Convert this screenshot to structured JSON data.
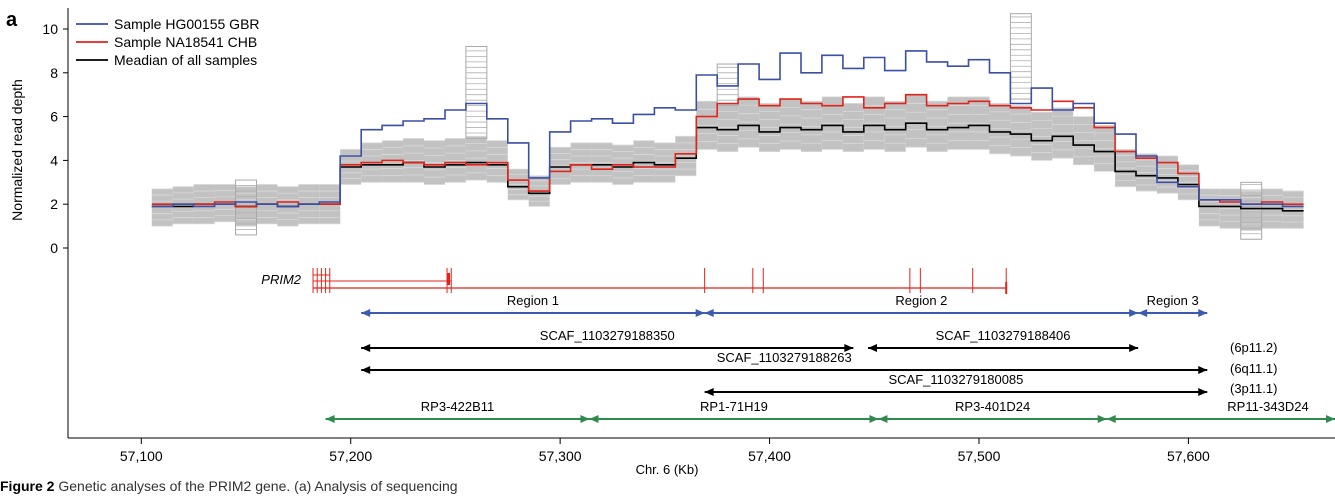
{
  "chart_data": {
    "type": "line",
    "panel_label": "a",
    "ylabel": "Normalized read depth",
    "xlabel": "Chr. 6 (Kb)",
    "xlim": [
      57065,
      57670
    ],
    "ylim": [
      -0.5,
      10.8
    ],
    "y_ticks": [
      0,
      2,
      4,
      6,
      8,
      10
    ],
    "x_ticks": [
      57100,
      57200,
      57300,
      57400,
      57500,
      57600
    ],
    "x_tick_labels": [
      "57,100",
      "57,200",
      "57,300",
      "57,400",
      "57,500",
      "57,600"
    ],
    "legend_placement": "top-left",
    "legend": [
      {
        "label": "Sample HG00155 GBR",
        "color": "#3a4fa6"
      },
      {
        "label": "Sample NA18541 CHB",
        "color": "#e2231a"
      },
      {
        "label": "Meadian of all samples",
        "color": "#000000"
      }
    ],
    "bin_edges": [
      57105,
      57115,
      57125,
      57135,
      57145,
      57155,
      57165,
      57175,
      57185,
      57195,
      57205,
      57215,
      57225,
      57235,
      57245,
      57255,
      57265,
      57275,
      57285,
      57295,
      57305,
      57315,
      57325,
      57335,
      57345,
      57355,
      57365,
      57375,
      57385,
      57395,
      57405,
      57415,
      57425,
      57435,
      57445,
      57455,
      57465,
      57475,
      57485,
      57495,
      57505,
      57515,
      57525,
      57535,
      57545,
      57555,
      57565,
      57575,
      57585,
      57595,
      57605,
      57615,
      57625,
      57635,
      57645,
      57655
    ],
    "series": [
      {
        "name": "Sample HG00155 GBR",
        "color": "#3a4fa6",
        "values": [
          1.9,
          2.0,
          1.9,
          2.0,
          2.1,
          2.0,
          1.9,
          2.0,
          2.1,
          4.2,
          5.4,
          5.6,
          5.8,
          5.9,
          6.3,
          6.6,
          5.9,
          4.8,
          3.2,
          5.3,
          5.8,
          5.9,
          5.7,
          6.1,
          6.4,
          6.3,
          7.9,
          7.4,
          8.4,
          7.7,
          8.9,
          8.0,
          8.8,
          8.2,
          8.7,
          8.1,
          9.0,
          8.5,
          8.3,
          8.6,
          8.0,
          6.6,
          7.3,
          6.3,
          6.6,
          5.7,
          5.2,
          4.2,
          3.0,
          2.8,
          2.2,
          2.2,
          2.0,
          2.0,
          1.9
        ]
      },
      {
        "name": "Sample NA18541 CHB",
        "color": "#e2231a",
        "values": [
          2.0,
          2.0,
          2.0,
          2.1,
          1.9,
          2.0,
          2.1,
          2.0,
          2.0,
          3.8,
          3.9,
          4.0,
          3.9,
          3.8,
          3.9,
          3.8,
          3.9,
          3.1,
          2.6,
          3.5,
          3.8,
          3.6,
          3.8,
          3.7,
          3.7,
          4.3,
          6.0,
          6.6,
          6.8,
          6.5,
          6.8,
          6.6,
          6.5,
          6.9,
          6.4,
          6.6,
          7.0,
          6.5,
          6.6,
          6.7,
          6.5,
          6.4,
          6.3,
          6.7,
          6.4,
          5.5,
          4.4,
          4.1,
          3.9,
          3.4,
          2.2,
          2.1,
          2.0,
          2.1,
          2.0
        ]
      },
      {
        "name": "Meadian of all samples",
        "color": "#000000",
        "values": [
          1.9,
          1.9,
          2.0,
          2.0,
          1.9,
          2.0,
          1.9,
          2.0,
          2.0,
          3.7,
          3.8,
          3.8,
          3.9,
          3.7,
          3.8,
          3.9,
          3.8,
          2.8,
          2.5,
          3.7,
          3.8,
          3.8,
          3.7,
          3.9,
          3.8,
          4.1,
          5.5,
          5.4,
          5.6,
          5.3,
          5.5,
          5.4,
          5.6,
          5.3,
          5.6,
          5.4,
          5.7,
          5.4,
          5.5,
          5.6,
          5.3,
          5.2,
          4.9,
          5.1,
          4.7,
          4.4,
          3.5,
          3.3,
          3.2,
          2.9,
          1.9,
          1.9,
          1.8,
          1.8,
          1.7
        ]
      }
    ],
    "background_band": {
      "color": "#c2c2c2",
      "low": [
        1.0,
        1.1,
        1.1,
        1.2,
        1.0,
        1.1,
        1.0,
        1.1,
        1.1,
        2.9,
        3.0,
        3.0,
        3.0,
        2.9,
        3.0,
        3.1,
        3.0,
        2.2,
        1.9,
        2.9,
        3.0,
        3.0,
        2.9,
        3.0,
        3.0,
        3.3,
        4.5,
        4.4,
        4.6,
        4.4,
        4.5,
        4.4,
        4.5,
        4.4,
        4.5,
        4.4,
        4.6,
        4.4,
        4.5,
        4.5,
        4.3,
        4.2,
        4.0,
        4.1,
        3.8,
        3.5,
        2.8,
        2.6,
        2.5,
        2.2,
        1.0,
        0.9,
        0.8,
        0.9,
        0.9
      ],
      "high": [
        2.7,
        2.8,
        2.9,
        2.9,
        2.8,
        2.9,
        2.8,
        2.9,
        2.9,
        4.5,
        4.8,
        4.9,
        5.0,
        4.9,
        5.0,
        5.1,
        4.9,
        3.6,
        3.3,
        4.6,
        4.8,
        4.8,
        4.7,
        4.9,
        4.8,
        5.1,
        6.7,
        6.6,
        6.9,
        6.6,
        6.8,
        6.7,
        6.9,
        6.6,
        6.9,
        6.7,
        7.0,
        6.7,
        6.9,
        6.9,
        6.6,
        6.5,
        6.2,
        6.4,
        6.0,
        5.6,
        4.5,
        4.3,
        4.2,
        3.8,
        2.7,
        2.7,
        2.6,
        2.7,
        2.6
      ]
    },
    "outlier_spikes": [
      {
        "x0": 57255,
        "x1": 57265,
        "low": 5.0,
        "high": 9.2
      },
      {
        "x0": 57375,
        "x1": 57385,
        "low": 6.5,
        "high": 8.4
      },
      {
        "x0": 57515,
        "x1": 57525,
        "low": 6.8,
        "high": 10.7
      },
      {
        "x0": 57145,
        "x1": 57155,
        "low": 0.6,
        "high": 3.1
      },
      {
        "x0": 57625,
        "x1": 57635,
        "low": 0.4,
        "high": 3.0
      }
    ],
    "gene": {
      "name": "PRIM2",
      "color": "#e2231a",
      "start": 57182,
      "end": 57513,
      "exons": [
        57182,
        57184,
        57186,
        57188,
        57190,
        57246,
        57248,
        57369,
        57392,
        57397,
        57467,
        57472,
        57497,
        57513
      ],
      "alt_transcripts": [
        {
          "start": 57182,
          "end": 57248
        },
        {
          "start": 57182,
          "end": 57190
        }
      ]
    },
    "regions": {
      "color": "#3a5bb0",
      "items": [
        {
          "label": "Region 1",
          "start": 57205,
          "end": 57369
        },
        {
          "label": "Region 2",
          "start": 57369,
          "end": 57576
        },
        {
          "label": "Region 3",
          "start": 57576,
          "end": 57609
        }
      ]
    },
    "scaffolds": {
      "color": "#000000",
      "items": [
        {
          "label": "SCAF_1103279188350",
          "start": 57205,
          "end": 57440,
          "note": ""
        },
        {
          "label": "SCAF_1103279188406",
          "start": 57447,
          "end": 57576,
          "note": ""
        },
        {
          "label": "SCAF_1103279188263",
          "start": 57205,
          "end": 57609,
          "note": "(6p11.2)"
        },
        {
          "label": "",
          "start": 57205,
          "end": 57609,
          "note": "(6q11.1)"
        },
        {
          "label": "SCAF_1103279180085",
          "start": 57369,
          "end": 57609,
          "note": "(3p11.1)"
        }
      ]
    },
    "clones": {
      "color": "#2f8a4e",
      "items": [
        {
          "label": "RP3-422B11",
          "start": 57188,
          "end": 57314
        },
        {
          "label": "RP1-71H19",
          "start": 57314,
          "end": 57452
        },
        {
          "label": "RP3-401D24",
          "start": 57452,
          "end": 57561
        },
        {
          "label": "RP11-343D24",
          "start": 57561,
          "end": 57670
        }
      ]
    }
  },
  "caption": {
    "prefix": "Figure 2",
    "text": " Genetic analyses of the PRIM2 gene. (a) Analysis of sequencing"
  }
}
